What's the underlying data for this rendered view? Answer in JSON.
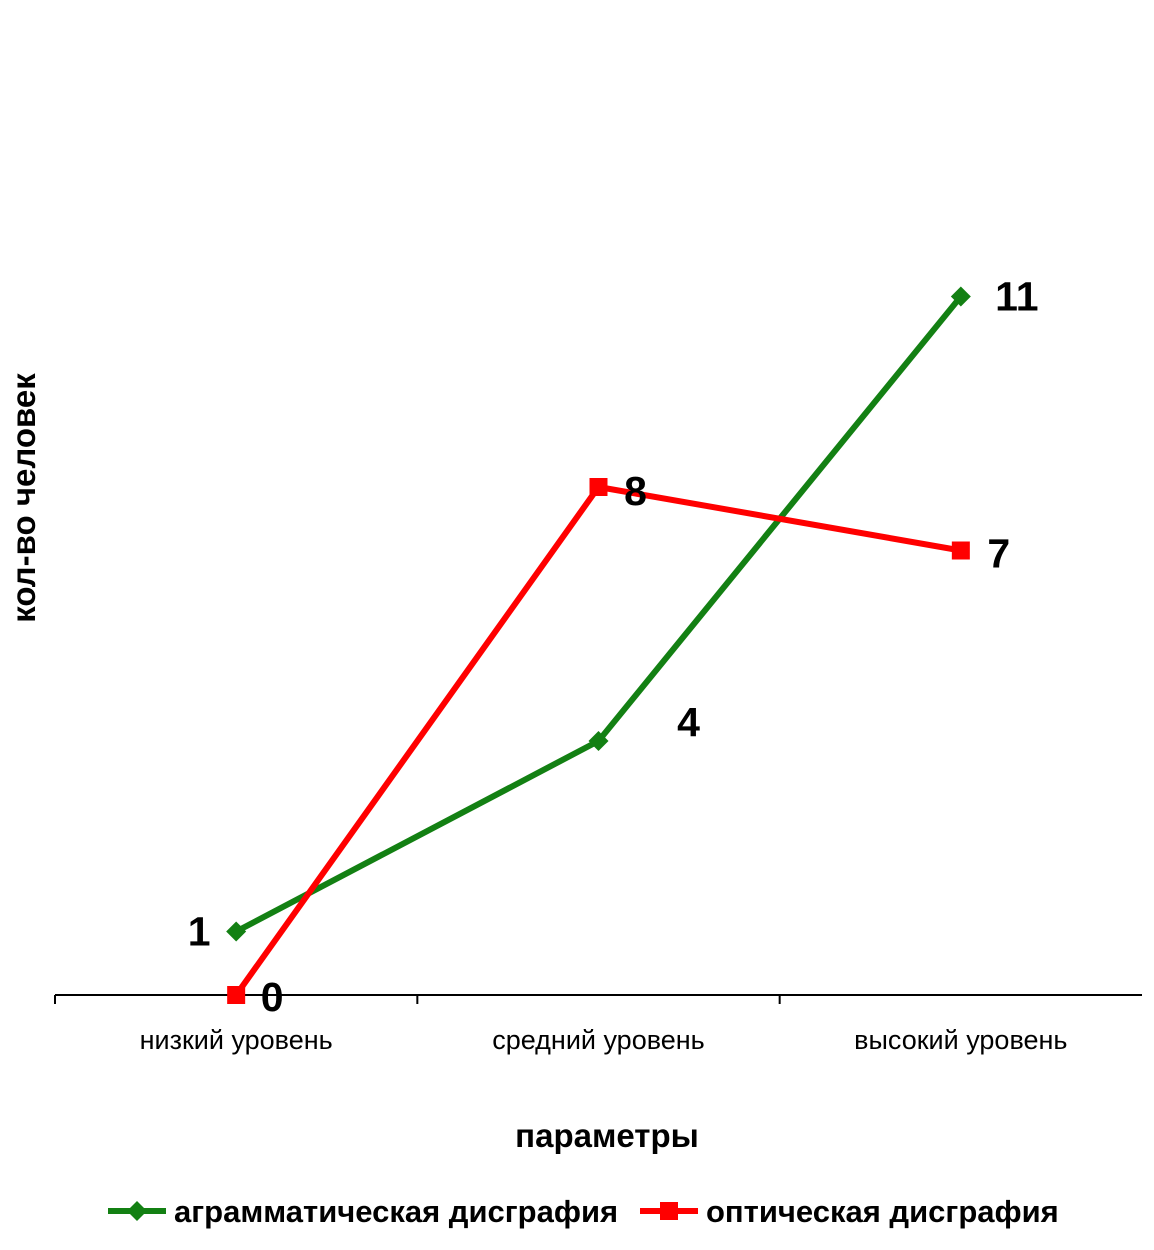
{
  "chart_data": {
    "type": "line",
    "categories": [
      "низкий уровень",
      "средний уровень",
      "высокий уровень"
    ],
    "series": [
      {
        "name": "аграмматическая дисграфия",
        "values": [
          1,
          4,
          11
        ],
        "color": "#138013",
        "marker": "diamond"
      },
      {
        "name": "оптическая дисграфия",
        "values": [
          0,
          8,
          7
        ],
        "color": "#ff0000",
        "marker": "square"
      }
    ],
    "title": "",
    "xlabel": "параметры",
    "ylabel": "кол-во человек",
    "ylim": [
      0,
      11
    ],
    "grid": false,
    "legend": "bottom",
    "data_labels": true
  }
}
